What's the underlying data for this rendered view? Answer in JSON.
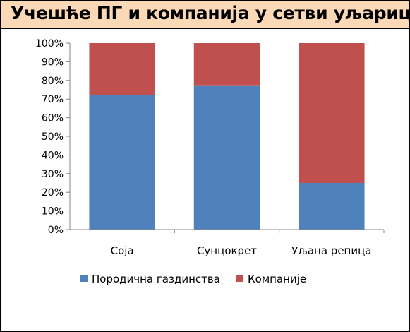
{
  "title": "Учешће ПГ и компанија у сетви уљарица",
  "chart_data": {
    "type": "bar",
    "stacked": true,
    "percent": true,
    "categories": [
      "Соја",
      "Сунцокрет",
      "Уљана репица"
    ],
    "series": [
      {
        "name": "Породична газдинства",
        "values": [
          72,
          77,
          25
        ],
        "color": "#4f81bd"
      },
      {
        "name": "Компаније",
        "values": [
          28,
          23,
          75
        ],
        "color": "#c0504d"
      }
    ],
    "yticks": [
      "0%",
      "10%",
      "20%",
      "30%",
      "40%",
      "50%",
      "60%",
      "70%",
      "80%",
      "90%",
      "100%"
    ],
    "ylim": [
      0,
      100
    ],
    "xlabel": "",
    "ylabel": "",
    "grid": false,
    "legend_position": "bottom"
  }
}
